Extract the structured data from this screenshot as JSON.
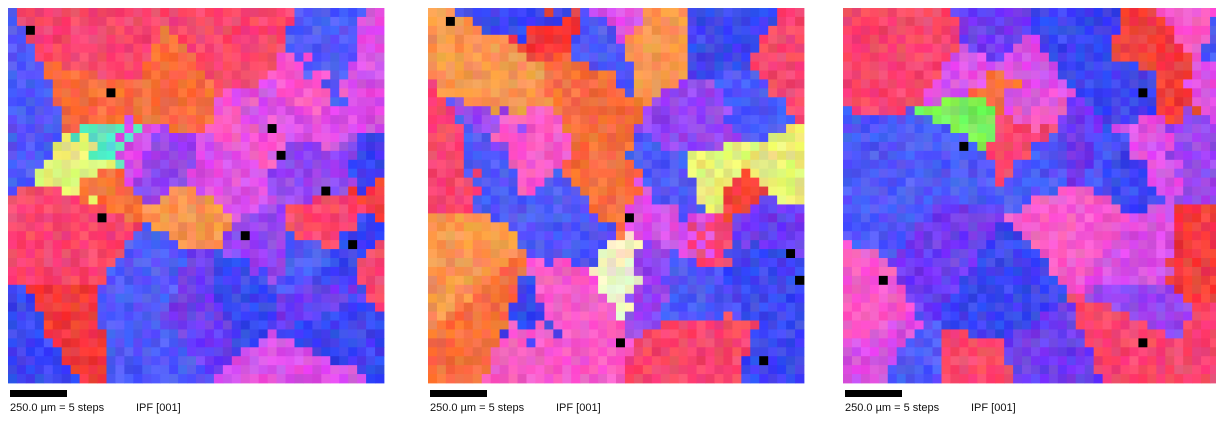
{
  "panels": [
    {
      "scale_label": "250.0 µm = 5 steps",
      "map_label": "IPF [001]"
    },
    {
      "scale_label": "250.0 µm = 5 steps",
      "map_label": "IPF [001]"
    },
    {
      "scale_label": "250.0 µm = 5 steps",
      "map_label": "IPF [001]"
    }
  ]
}
